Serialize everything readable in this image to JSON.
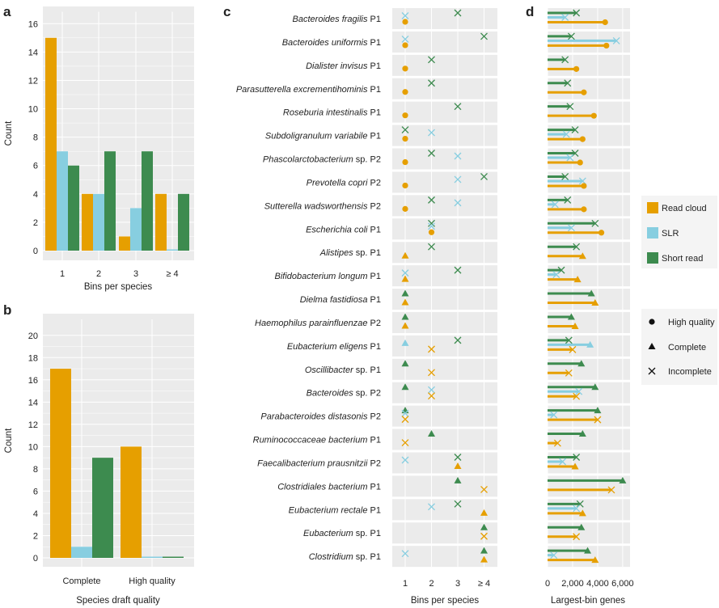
{
  "colors": {
    "read_cloud": "#E69F00",
    "slr": "#87CEE0",
    "short_read": "#3D8B4F",
    "panel_bg": "#EBEBEB",
    "grid": "#FFFFFF"
  },
  "legend": {
    "methods": [
      "Read cloud",
      "SLR",
      "Short read"
    ],
    "qualities": [
      "High quality",
      "Complete",
      "Incomplete"
    ]
  },
  "chart_data": [
    {
      "panel": "a",
      "type": "bar",
      "xlabel": "Bins per species",
      "ylabel": "Count",
      "categories": [
        "1",
        "2",
        "3",
        "≥ 4"
      ],
      "ylim": [
        0,
        16.5
      ],
      "yticks": [
        0,
        2,
        4,
        6,
        8,
        10,
        12,
        14,
        16
      ],
      "series": [
        {
          "name": "Read cloud",
          "values": [
            15,
            4,
            1,
            4
          ]
        },
        {
          "name": "SLR",
          "values": [
            7,
            4,
            3,
            0
          ]
        },
        {
          "name": "Short read",
          "values": [
            6,
            7,
            7,
            4
          ]
        }
      ]
    },
    {
      "panel": "b",
      "type": "bar",
      "xlabel": "Species draft quality",
      "ylabel": "Count",
      "categories": [
        "Complete",
        "High quality"
      ],
      "ylim": [
        0,
        21
      ],
      "yticks": [
        0,
        2,
        4,
        6,
        8,
        10,
        12,
        14,
        16,
        18,
        20
      ],
      "series": [
        {
          "name": "Read cloud",
          "values": [
            17,
            10
          ]
        },
        {
          "name": "SLR",
          "values": [
            1,
            0
          ]
        },
        {
          "name": "Short read",
          "values": [
            9,
            0
          ]
        }
      ]
    },
    {
      "panel": "c",
      "type": "scatter",
      "xlabel": "Bins per species",
      "xticks": [
        "1",
        "2",
        "3",
        "≥ 4"
      ],
      "species": [
        {
          "name": "Bacteroides fragilis",
          "suffix": "P1",
          "rc": [
            1,
            "high"
          ],
          "slr": [
            1,
            "incomplete"
          ],
          "sr": [
            3,
            "incomplete"
          ]
        },
        {
          "name": "Bacteroides uniformis",
          "suffix": "P1",
          "rc": [
            1,
            "high"
          ],
          "slr": [
            1,
            "incomplete"
          ],
          "sr": [
            4,
            "incomplete"
          ]
        },
        {
          "name": "Dialister invisus",
          "suffix": "P1",
          "rc": [
            1,
            "high"
          ],
          "slr": null,
          "sr": [
            2,
            "incomplete"
          ]
        },
        {
          "name": "Parasutterella excrementihominis",
          "suffix": "P1",
          "rc": [
            1,
            "high"
          ],
          "slr": null,
          "sr": [
            2,
            "incomplete"
          ]
        },
        {
          "name": "Roseburia intestinalis",
          "suffix": "P1",
          "rc": [
            1,
            "high"
          ],
          "slr": null,
          "sr": [
            3,
            "incomplete"
          ]
        },
        {
          "name": "Subdoligranulum variabile",
          "suffix": "P1",
          "rc": [
            1,
            "high"
          ],
          "slr": [
            2,
            "incomplete"
          ],
          "sr": [
            1,
            "incomplete"
          ]
        },
        {
          "name": "Phascolarctobacterium",
          "suffix": "sp. P2",
          "rc": [
            1,
            "high"
          ],
          "slr": [
            3,
            "incomplete"
          ],
          "sr": [
            2,
            "incomplete"
          ]
        },
        {
          "name": "Prevotella copri",
          "suffix": "P2",
          "rc": [
            1,
            "high"
          ],
          "slr": [
            3,
            "incomplete"
          ],
          "sr": [
            4,
            "incomplete"
          ]
        },
        {
          "name": "Sutterella wadsworthensis",
          "suffix": "P2",
          "rc": [
            1,
            "high"
          ],
          "slr": [
            3,
            "incomplete"
          ],
          "sr": [
            2,
            "incomplete"
          ]
        },
        {
          "name": "Escherichia coli",
          "suffix": "P1",
          "rc": [
            2,
            "high"
          ],
          "slr": [
            2,
            "incomplete"
          ],
          "sr": [
            2,
            "incomplete"
          ]
        },
        {
          "name": "Alistipes",
          "suffix": "sp. P1",
          "rc": [
            1,
            "complete"
          ],
          "slr": null,
          "sr": [
            2,
            "incomplete"
          ]
        },
        {
          "name": "Bifidobacterium longum",
          "suffix": "P1",
          "rc": [
            1,
            "complete"
          ],
          "slr": [
            1,
            "incomplete"
          ],
          "sr": [
            3,
            "incomplete"
          ]
        },
        {
          "name": "Dielma fastidiosa",
          "suffix": "P1",
          "rc": [
            1,
            "complete"
          ],
          "slr": null,
          "sr": [
            1,
            "complete"
          ]
        },
        {
          "name": "Haemophilus parainfluenzae",
          "suffix": "P2",
          "rc": [
            1,
            "complete"
          ],
          "slr": null,
          "sr": [
            1,
            "complete"
          ]
        },
        {
          "name": "Eubacterium eligens",
          "suffix": "P1",
          "rc": [
            2,
            "incomplete"
          ],
          "slr": [
            1,
            "complete"
          ],
          "sr": [
            3,
            "incomplete"
          ]
        },
        {
          "name": "Oscillibacter",
          "suffix": "sp. P1",
          "rc": [
            2,
            "incomplete"
          ],
          "slr": null,
          "sr": [
            1,
            "complete"
          ]
        },
        {
          "name": "Bacteroides",
          "suffix": "sp. P2",
          "rc": [
            2,
            "incomplete"
          ],
          "slr": [
            2,
            "incomplete"
          ],
          "sr": [
            1,
            "complete"
          ]
        },
        {
          "name": "Parabacteroides distasonis",
          "suffix": "P2",
          "rc": [
            1,
            "incomplete"
          ],
          "slr": [
            1,
            "incomplete"
          ],
          "sr": [
            1,
            "complete"
          ]
        },
        {
          "name": "Ruminococcaceae bacterium",
          "suffix": "P1",
          "rc": [
            1,
            "incomplete"
          ],
          "slr": null,
          "sr": [
            2,
            "complete"
          ]
        },
        {
          "name": "Faecalibacterium prausnitzii",
          "suffix": "P2",
          "rc": [
            3,
            "complete"
          ],
          "slr": [
            1,
            "incomplete"
          ],
          "sr": [
            3,
            "incomplete"
          ]
        },
        {
          "name": "Clostridiales bacterium",
          "suffix": "P1",
          "rc": [
            4,
            "incomplete"
          ],
          "slr": null,
          "sr": [
            3,
            "complete"
          ]
        },
        {
          "name": "Eubacterium rectale",
          "suffix": "P1",
          "rc": [
            4,
            "complete"
          ],
          "slr": [
            2,
            "incomplete"
          ],
          "sr": [
            3,
            "incomplete"
          ]
        },
        {
          "name": "Eubacterium",
          "suffix": "sp. P1",
          "rc": [
            4,
            "incomplete"
          ],
          "slr": null,
          "sr": [
            4,
            "complete"
          ]
        },
        {
          "name": "Clostridium",
          "suffix": "sp. P1",
          "rc": [
            4,
            "complete"
          ],
          "slr": [
            1,
            "incomplete"
          ],
          "sr": [
            4,
            "complete"
          ]
        }
      ]
    },
    {
      "panel": "d",
      "type": "bar",
      "orientation": "horizontal",
      "xlabel": "Largest-bin genes",
      "xlim": [
        0,
        6200
      ],
      "xticks": [
        0,
        2000,
        4000,
        6000
      ],
      "xtick_labels": [
        "0",
        "2,000",
        "4,000",
        "6,000"
      ],
      "rows": [
        {
          "sr": [
            2300,
            "incomplete"
          ],
          "slr": [
            1400,
            "incomplete"
          ],
          "rc": [
            4600,
            "high"
          ]
        },
        {
          "sr": [
            1900,
            "incomplete"
          ],
          "slr": [
            5500,
            "incomplete"
          ],
          "rc": [
            4700,
            "high"
          ]
        },
        {
          "sr": [
            1400,
            "incomplete"
          ],
          "slr": null,
          "rc": [
            2300,
            "high"
          ]
        },
        {
          "sr": [
            1600,
            "incomplete"
          ],
          "slr": null,
          "rc": [
            2900,
            "high"
          ]
        },
        {
          "sr": [
            1800,
            "incomplete"
          ],
          "slr": null,
          "rc": [
            3700,
            "high"
          ]
        },
        {
          "sr": [
            2200,
            "incomplete"
          ],
          "slr": [
            1500,
            "incomplete"
          ],
          "rc": [
            2800,
            "high"
          ]
        },
        {
          "sr": [
            2200,
            "incomplete"
          ],
          "slr": [
            1800,
            "incomplete"
          ],
          "rc": [
            2600,
            "high"
          ]
        },
        {
          "sr": [
            1400,
            "incomplete"
          ],
          "slr": [
            2800,
            "incomplete"
          ],
          "rc": [
            2900,
            "high"
          ]
        },
        {
          "sr": [
            1600,
            "incomplete"
          ],
          "slr": [
            600,
            "incomplete"
          ],
          "rc": [
            2900,
            "high"
          ]
        },
        {
          "sr": [
            3800,
            "incomplete"
          ],
          "slr": [
            1900,
            "incomplete"
          ],
          "rc": [
            4300,
            "high"
          ]
        },
        {
          "sr": [
            2300,
            "incomplete"
          ],
          "slr": null,
          "rc": [
            2800,
            "complete"
          ]
        },
        {
          "sr": [
            1100,
            "incomplete"
          ],
          "slr": [
            700,
            "incomplete"
          ],
          "rc": [
            2400,
            "complete"
          ]
        },
        {
          "sr": [
            3500,
            "complete"
          ],
          "slr": null,
          "rc": [
            3800,
            "complete"
          ]
        },
        {
          "sr": [
            1900,
            "complete"
          ],
          "slr": null,
          "rc": [
            2200,
            "complete"
          ]
        },
        {
          "sr": [
            1700,
            "incomplete"
          ],
          "slr": [
            3400,
            "complete"
          ],
          "rc": [
            2000,
            "incomplete"
          ]
        },
        {
          "sr": [
            2700,
            "complete"
          ],
          "slr": null,
          "rc": [
            1700,
            "incomplete"
          ]
        },
        {
          "sr": [
            3800,
            "complete"
          ],
          "slr": [
            2500,
            "incomplete"
          ],
          "rc": [
            2300,
            "incomplete"
          ]
        },
        {
          "sr": [
            4000,
            "complete"
          ],
          "slr": [
            500,
            "incomplete"
          ],
          "rc": [
            4000,
            "incomplete"
          ]
        },
        {
          "sr": [
            2800,
            "complete"
          ],
          "slr": null,
          "rc": [
            800,
            "incomplete"
          ]
        },
        {
          "sr": [
            2300,
            "incomplete"
          ],
          "slr": [
            1200,
            "incomplete"
          ],
          "rc": [
            2200,
            "complete"
          ]
        },
        {
          "sr": [
            6000,
            "complete"
          ],
          "slr": null,
          "rc": [
            5100,
            "incomplete"
          ]
        },
        {
          "sr": [
            2600,
            "incomplete"
          ],
          "slr": [
            2300,
            "incomplete"
          ],
          "rc": [
            2800,
            "complete"
          ]
        },
        {
          "sr": [
            2700,
            "complete"
          ],
          "slr": null,
          "rc": [
            2300,
            "incomplete"
          ]
        },
        {
          "sr": [
            3200,
            "complete"
          ],
          "slr": [
            500,
            "incomplete"
          ],
          "rc": [
            3800,
            "complete"
          ]
        }
      ]
    }
  ]
}
